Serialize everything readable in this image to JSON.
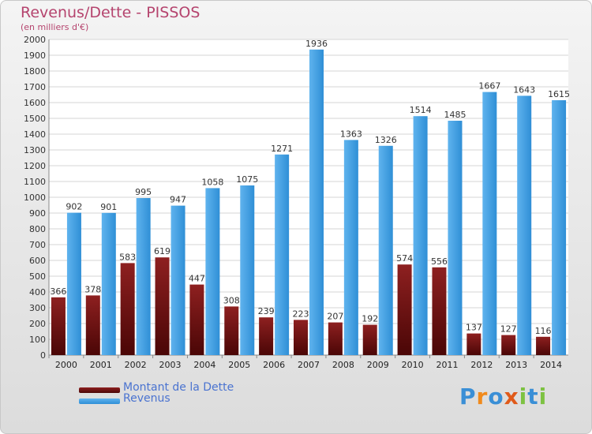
{
  "chart_data": {
    "type": "bar",
    "title": "Revenus/Dette - PISSOS",
    "subtitle": "(en milliers d'€)",
    "categories": [
      "2000",
      "2001",
      "2002",
      "2003",
      "2004",
      "2005",
      "2006",
      "2007",
      "2008",
      "2009",
      "2010",
      "2011",
      "2012",
      "2013",
      "2014"
    ],
    "series": [
      {
        "name": "Montant de la Dette",
        "color": "#7a1414",
        "values": [
          366,
          378,
          583,
          619,
          447,
          308,
          239,
          223,
          207,
          192,
          574,
          556,
          137,
          127,
          116
        ]
      },
      {
        "name": "Revenus",
        "color": "#3d9ee0",
        "values": [
          902,
          901,
          995,
          947,
          1058,
          1075,
          1271,
          1936,
          1363,
          1326,
          1514,
          1485,
          1667,
          1643,
          1615
        ]
      }
    ],
    "ylim": [
      0,
      2000
    ],
    "ytick_step": 100,
    "grid": true,
    "legend_position": "bottom-left"
  },
  "logo": {
    "letters": [
      "P",
      "r",
      "o",
      "x",
      "i",
      "t",
      "i"
    ],
    "colors": [
      "#3a8fd6",
      "#f08a1c",
      "#3a8fd6",
      "#e05a1a",
      "#7dc242",
      "#3a8fd6",
      "#7dc242"
    ]
  }
}
